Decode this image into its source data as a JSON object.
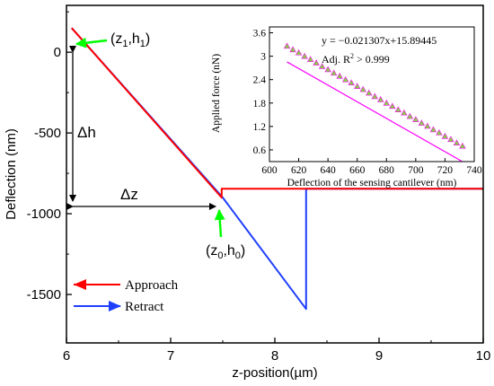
{
  "chart_data": [
    {
      "type": "line",
      "xlabel": "z-position(µm)",
      "ylabel": "Deflection (nm)",
      "xlim": [
        6,
        10
      ],
      "ylim": [
        -1800,
        290
      ],
      "x_ticks": [
        6,
        7,
        8,
        9,
        10
      ],
      "y_ticks": [
        0,
        -500,
        -1000,
        -1500
      ],
      "grid": false,
      "legend_position": "bottom-left",
      "series": [
        {
          "name": "Approach",
          "color": "#ff0000",
          "x": [
            6.05,
            7.49,
            7.49,
            10.0
          ],
          "y": [
            150,
            -900,
            -845,
            -845
          ]
        },
        {
          "name": "Retract",
          "color": "#1f3fff",
          "x": [
            6.05,
            7.5,
            8.3,
            8.3,
            10.0
          ],
          "y": [
            150,
            -900,
            -1590,
            -845,
            -845
          ]
        }
      ],
      "annotations": {
        "point1": "(z1,h1)",
        "point0": "(z0,h0)",
        "dh": "Δh",
        "dz": "Δz",
        "arrow_color": "#00ff00"
      }
    },
    {
      "type": "scatter",
      "xlabel": "Deflection of the sensing cantilever (nm)",
      "ylabel": "Applied force (nN)",
      "xlim": [
        600,
        740
      ],
      "ylim": [
        0.3,
        3.75
      ],
      "x_ticks": [
        600,
        620,
        640,
        660,
        680,
        700,
        720,
        740
      ],
      "y_ticks": [
        0.6,
        1.2,
        1.8,
        2.4,
        3.0,
        3.6
      ],
      "y_tick_labels": [
        "0.6",
        "1.2",
        "1.8",
        "2.4",
        "3",
        "3.6"
      ],
      "equation": "y = −0.021307x+15.89445",
      "r2_label": "Adj. R",
      "r2_sup": "2",
      "r2_rest": " > 0.999",
      "fit": {
        "slope": -0.021307,
        "intercept": 15.89445
      },
      "series": [
        {
          "marker_color": "#88cc44",
          "line_color": "#ff00ff",
          "x": [
            612,
            616,
            620,
            624,
            628,
            632,
            636,
            640,
            644,
            648,
            652,
            656,
            660,
            664,
            668,
            672,
            676,
            680,
            684,
            688,
            692,
            696,
            700,
            704,
            708,
            712,
            716,
            720,
            724,
            728,
            732
          ],
          "y": [
            3.26,
            3.17,
            3.09,
            3.0,
            2.92,
            2.83,
            2.74,
            2.66,
            2.57,
            2.49,
            2.4,
            2.32,
            2.23,
            2.15,
            2.06,
            1.97,
            1.89,
            1.8,
            1.72,
            1.63,
            1.55,
            1.46,
            1.38,
            1.29,
            1.21,
            1.12,
            1.04,
            0.95,
            0.87,
            0.78,
            0.7
          ]
        }
      ]
    }
  ]
}
